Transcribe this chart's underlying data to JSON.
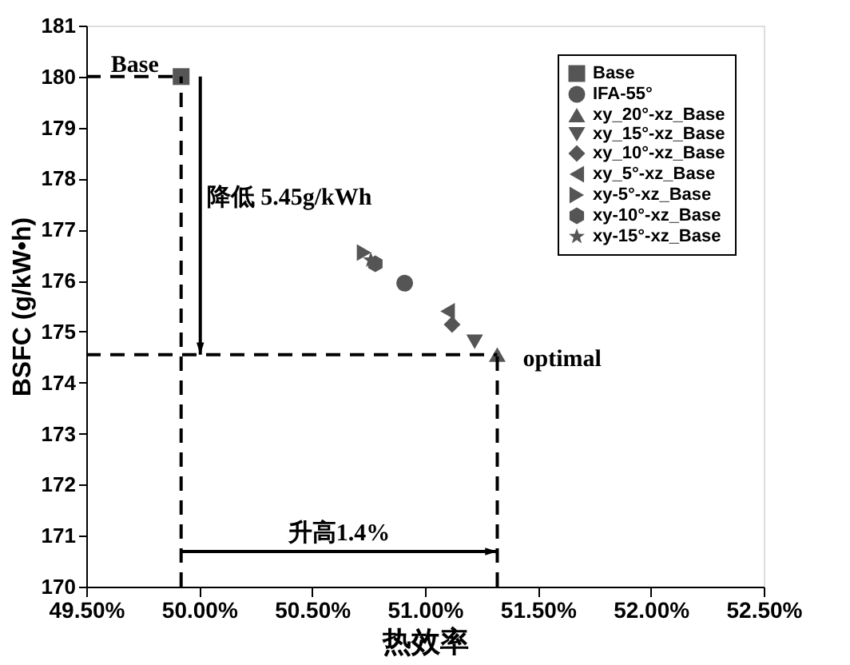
{
  "chart_data": {
    "type": "scatter",
    "xlabel": "热效率",
    "ylabel": "BSFC (g/kW•h)",
    "xlim": [
      49.5,
      52.5
    ],
    "ylim": [
      170,
      181
    ],
    "xticks": [
      {
        "value": 49.5,
        "label": "49.50%"
      },
      {
        "value": 50.0,
        "label": "50.00%"
      },
      {
        "value": 50.5,
        "label": "50.50%"
      },
      {
        "value": 51.0,
        "label": "51.00%"
      },
      {
        "value": 51.5,
        "label": "51.50%"
      },
      {
        "value": 52.0,
        "label": "52.00%"
      },
      {
        "value": 52.5,
        "label": "52.50%"
      }
    ],
    "yticks": [
      170,
      171,
      172,
      173,
      174,
      175,
      176,
      177,
      178,
      179,
      180,
      181
    ],
    "grid": false,
    "legend": "top right",
    "series": [
      {
        "name": "Base",
        "color": "#555555",
        "marker": "square",
        "x": [
          49.92
        ],
        "values": [
          180.0
        ]
      },
      {
        "name": "IFA-55°",
        "color": "#555555",
        "marker": "circle",
        "x": [
          50.91
        ],
        "values": [
          175.95
        ]
      },
      {
        "name": "xy_20°-xz_Base",
        "color": "#555555",
        "marker": "triangle",
        "x": [
          51.32
        ],
        "values": [
          174.55
        ]
      },
      {
        "name": "xy_15°-xz_Base",
        "color": "#555555",
        "marker": "triangle-down",
        "x": [
          51.22
        ],
        "values": [
          174.8
        ]
      },
      {
        "name": "xy_10°-xz_Base",
        "color": "#555555",
        "marker": "diamond",
        "x": [
          51.12
        ],
        "values": [
          175.14
        ]
      },
      {
        "name": "xy_5°-xz_Base",
        "color": "#555555",
        "marker": "triangle-left",
        "x": [
          51.1
        ],
        "values": [
          175.4
        ]
      },
      {
        "name": "xy-5°-xz_Base",
        "color": "#555555",
        "marker": "triangle-right",
        "x": [
          50.73
        ],
        "values": [
          176.55
        ]
      },
      {
        "name": "xy-10°-xz_Base",
        "color": "#555555",
        "x": [
          50.78
        ],
        "values": [
          176.33
        ]
      },
      {
        "name": "xy-15°-xz_Base",
        "color": "#555555",
        "marker": "star",
        "x": [
          50.76
        ],
        "values": [
          176.4
        ]
      }
    ],
    "ref_lines": [
      {
        "axis": "y",
        "value": 180,
        "color": "#000000",
        "line_style": "dashed"
      },
      {
        "axis": "y",
        "value": 174.55,
        "color": "#000000",
        "line_style": "dashed"
      },
      {
        "axis": "x",
        "value": 49.92,
        "color": "#000000",
        "line_style": "dashed"
      },
      {
        "axis": "x",
        "value": 51.32,
        "color": "#000000",
        "line_style": "dashed"
      }
    ],
    "annotations": [
      "降低 5.45g/kWh",
      "升高1.4%",
      {
        "text": "Base",
        "x": 49.92,
        "y": 180.0
      },
      {
        "text": "optimal",
        "x": 51.32,
        "y": 174.55
      }
    ]
  }
}
